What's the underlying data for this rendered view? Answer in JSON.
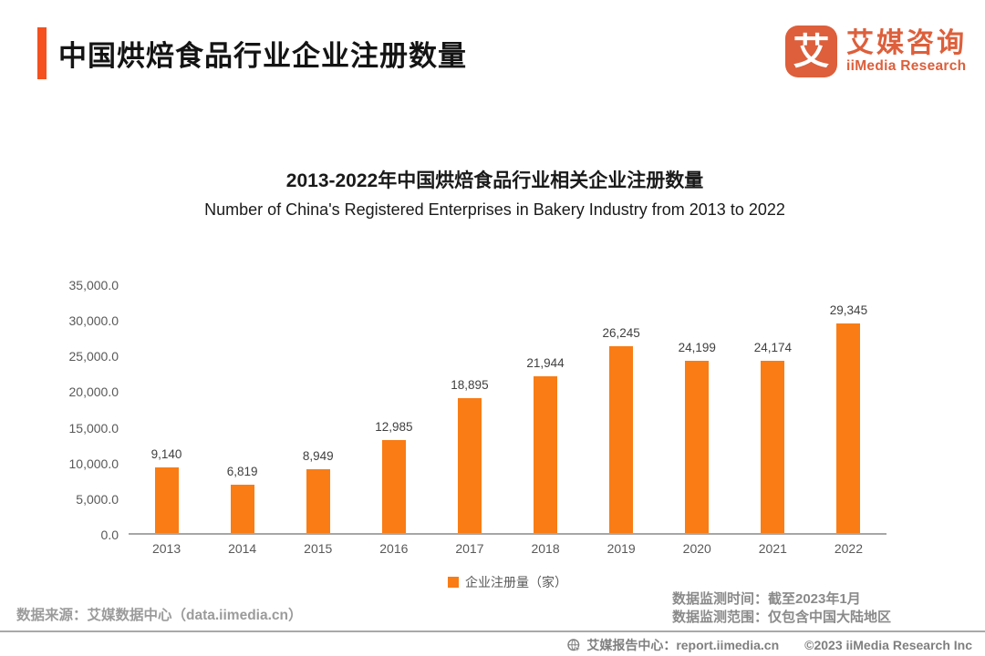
{
  "header": {
    "title": "中国烘焙食品行业企业注册数量",
    "logo": {
      "mark_glyph": "艾",
      "brand_cn": "艾媒咨询",
      "brand_en": "iiMedia Research"
    }
  },
  "chart_data": {
    "type": "bar",
    "title": "2013-2022年中国烘焙食品行业相关企业注册数量",
    "subtitle": "Number of China's Registered Enterprises in Bakery Industry from 2013 to 2022",
    "categories": [
      "2013",
      "2014",
      "2015",
      "2016",
      "2017",
      "2018",
      "2019",
      "2020",
      "2021",
      "2022"
    ],
    "values": [
      9140,
      6819,
      8949,
      12985,
      18895,
      21944,
      26245,
      24199,
      24174,
      29345
    ],
    "value_labels": [
      "9,140",
      "6,819",
      "8,949",
      "12,985",
      "18,895",
      "21,944",
      "26,245",
      "24,199",
      "24,174",
      "29,345"
    ],
    "legend": "企业注册量（家）",
    "legend_position": "bottom",
    "xlabel": "",
    "ylabel": "",
    "ylim": [
      0,
      35000
    ],
    "y_tick_labels": [
      "0.0",
      "5,000.0",
      "10,000.0",
      "15,000.0",
      "20,000.0",
      "25,000.0",
      "30,000.0",
      "35,000.0"
    ],
    "grid": false,
    "bar_color": "#F97C15"
  },
  "notes": {
    "source": "数据来源：艾媒数据中心（data.iimedia.cn）",
    "monitor_time": "数据监测时间：截至2023年1月",
    "monitor_scope": "数据监测范围：仅包含中国大陆地区"
  },
  "footer": {
    "report_center": "艾媒报告中心：report.iimedia.cn",
    "copyright": "©2023 iiMedia Research Inc"
  },
  "colors": {
    "accent": "#F4511E",
    "brand": "#DD5F3B",
    "bar": "#F97C15",
    "axis_line": "#A6A6A6",
    "tick_text": "#595959",
    "value_text": "#404040",
    "note_gray": "#9B9B9B",
    "footer_gray": "#7F7F7F"
  }
}
